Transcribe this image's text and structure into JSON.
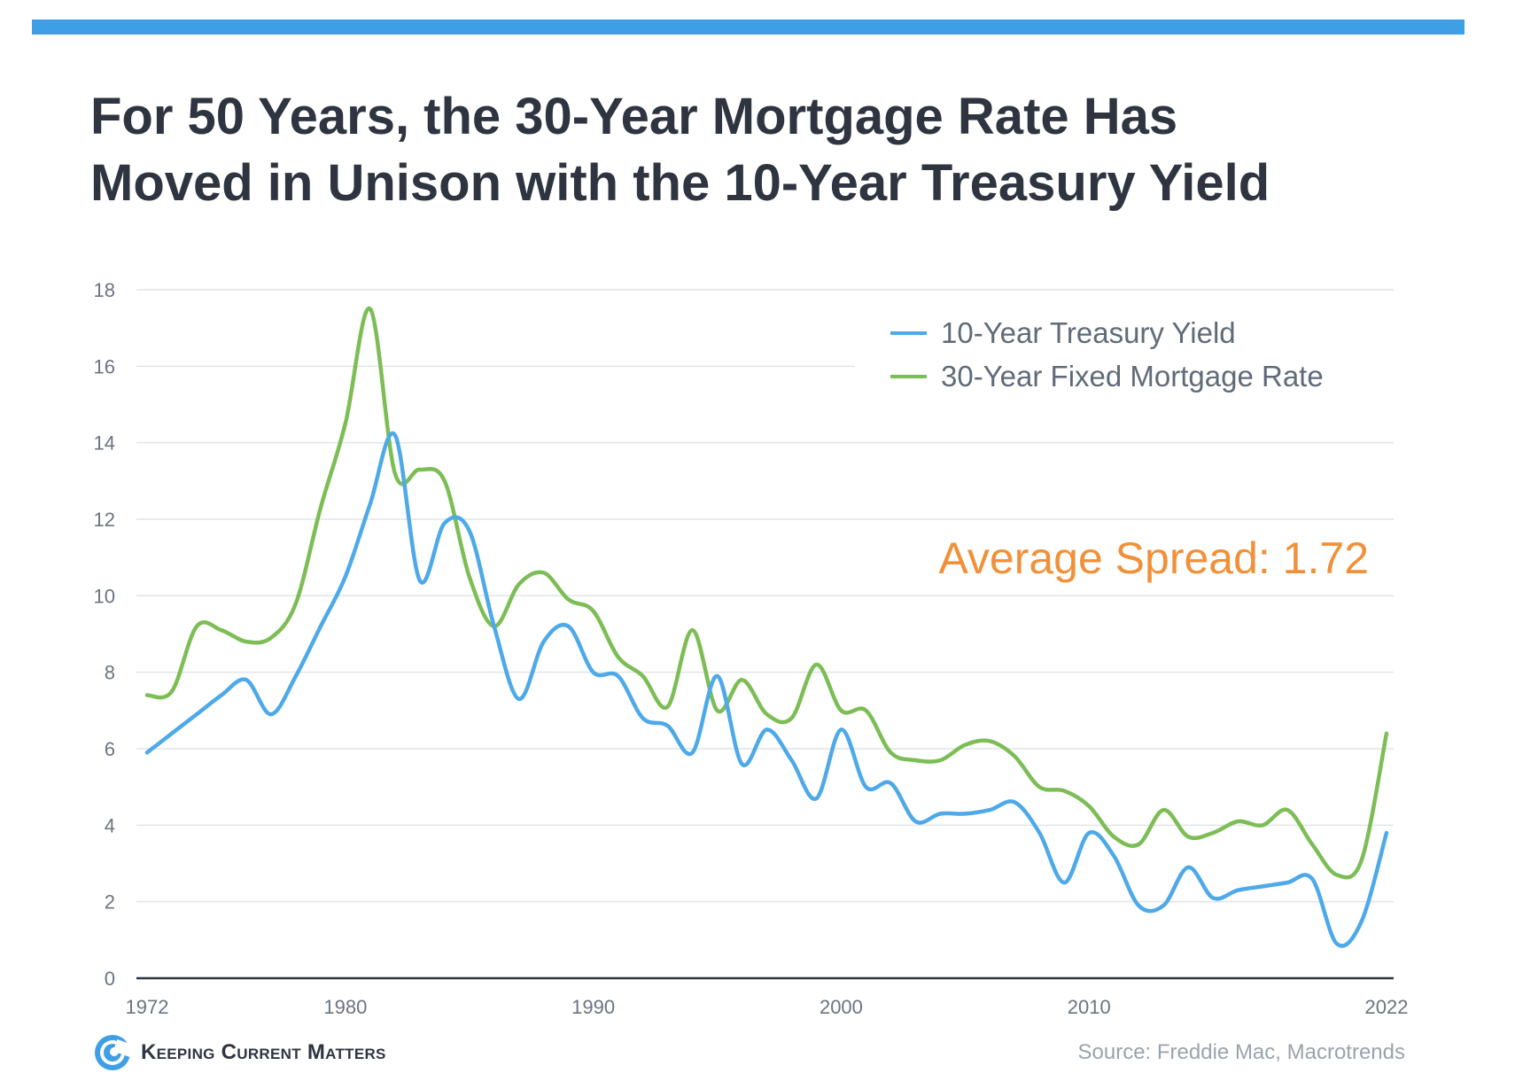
{
  "header": {
    "title_line1": "For 50 Years, the 30-Year Mortgage Rate Has",
    "title_line2": "Moved in Unison with the 10-Year Treasury Yield"
  },
  "footer": {
    "brand": "Keeping Current Matters",
    "source": "Source: Freddie Mac, Macrotrends"
  },
  "colors": {
    "accent_bar": "#3f9fe4",
    "treasury": "#4ea9e8",
    "mortgage": "#7cbe55",
    "annotation": "#f0913a"
  },
  "chart_data": {
    "type": "line",
    "title": "For 50 Years, the 30-Year Mortgage Rate Has Moved in Unison with the 10-Year Treasury Yield",
    "xlabel": "",
    "ylabel": "",
    "xlim": [
      1972,
      2022
    ],
    "ylim": [
      0,
      18
    ],
    "y_ticks": [
      0,
      2,
      4,
      6,
      8,
      10,
      12,
      14,
      16,
      18
    ],
    "x_ticks": [
      1972,
      1980,
      1990,
      2000,
      2010,
      2022
    ],
    "grid": true,
    "legend_position": "top-right",
    "annotation": "Average Spread: 1.72",
    "series": [
      {
        "name": "10-Year Treasury Yield",
        "color": "#4ea9e8",
        "x": [
          1972,
          1973,
          1974,
          1975,
          1976,
          1977,
          1978,
          1979,
          1980,
          1981,
          1982,
          1983,
          1984,
          1985,
          1986,
          1987,
          1988,
          1989,
          1990,
          1991,
          1992,
          1993,
          1994,
          1995,
          1996,
          1997,
          1998,
          1999,
          2000,
          2001,
          2002,
          2003,
          2004,
          2005,
          2006,
          2007,
          2008,
          2009,
          2010,
          2011,
          2012,
          2013,
          2014,
          2015,
          2016,
          2017,
          2018,
          2019,
          2020,
          2021,
          2022
        ],
        "values": [
          5.9,
          6.4,
          6.9,
          7.4,
          7.8,
          6.9,
          7.9,
          9.2,
          10.5,
          12.4,
          14.2,
          10.4,
          11.9,
          11.7,
          9.2,
          7.3,
          8.8,
          9.2,
          8.0,
          7.9,
          6.8,
          6.6,
          5.9,
          7.9,
          5.6,
          6.5,
          5.7,
          4.7,
          6.5,
          5.0,
          5.1,
          4.1,
          4.3,
          4.3,
          4.4,
          4.6,
          3.8,
          2.5,
          3.8,
          3.2,
          1.9,
          1.9,
          2.9,
          2.1,
          2.3,
          2.4,
          2.5,
          2.6,
          0.9,
          1.5,
          3.8
        ]
      },
      {
        "name": "30-Year Fixed Mortgage Rate",
        "color": "#7cbe55",
        "x": [
          1972,
          1973,
          1974,
          1975,
          1976,
          1977,
          1978,
          1979,
          1980,
          1981,
          1982,
          1983,
          1984,
          1985,
          1986,
          1987,
          1988,
          1989,
          1990,
          1991,
          1992,
          1993,
          1994,
          1995,
          1996,
          1997,
          1998,
          1999,
          2000,
          2001,
          2002,
          2003,
          2004,
          2005,
          2006,
          2007,
          2008,
          2009,
          2010,
          2011,
          2012,
          2013,
          2014,
          2015,
          2016,
          2017,
          2018,
          2019,
          2020,
          2021,
          2022
        ],
        "values": [
          7.4,
          7.5,
          9.2,
          9.1,
          8.8,
          8.9,
          9.8,
          12.3,
          14.5,
          17.5,
          13.2,
          13.3,
          13.0,
          10.5,
          9.2,
          10.3,
          10.6,
          9.9,
          9.6,
          8.4,
          7.9,
          7.1,
          9.1,
          7.0,
          7.8,
          6.9,
          6.8,
          8.2,
          7.0,
          7.0,
          5.9,
          5.7,
          5.7,
          6.1,
          6.2,
          5.8,
          5.0,
          4.9,
          4.5,
          3.7,
          3.5,
          4.4,
          3.7,
          3.8,
          4.1,
          4.0,
          4.4,
          3.5,
          2.7,
          3.1,
          6.4
        ]
      }
    ]
  }
}
